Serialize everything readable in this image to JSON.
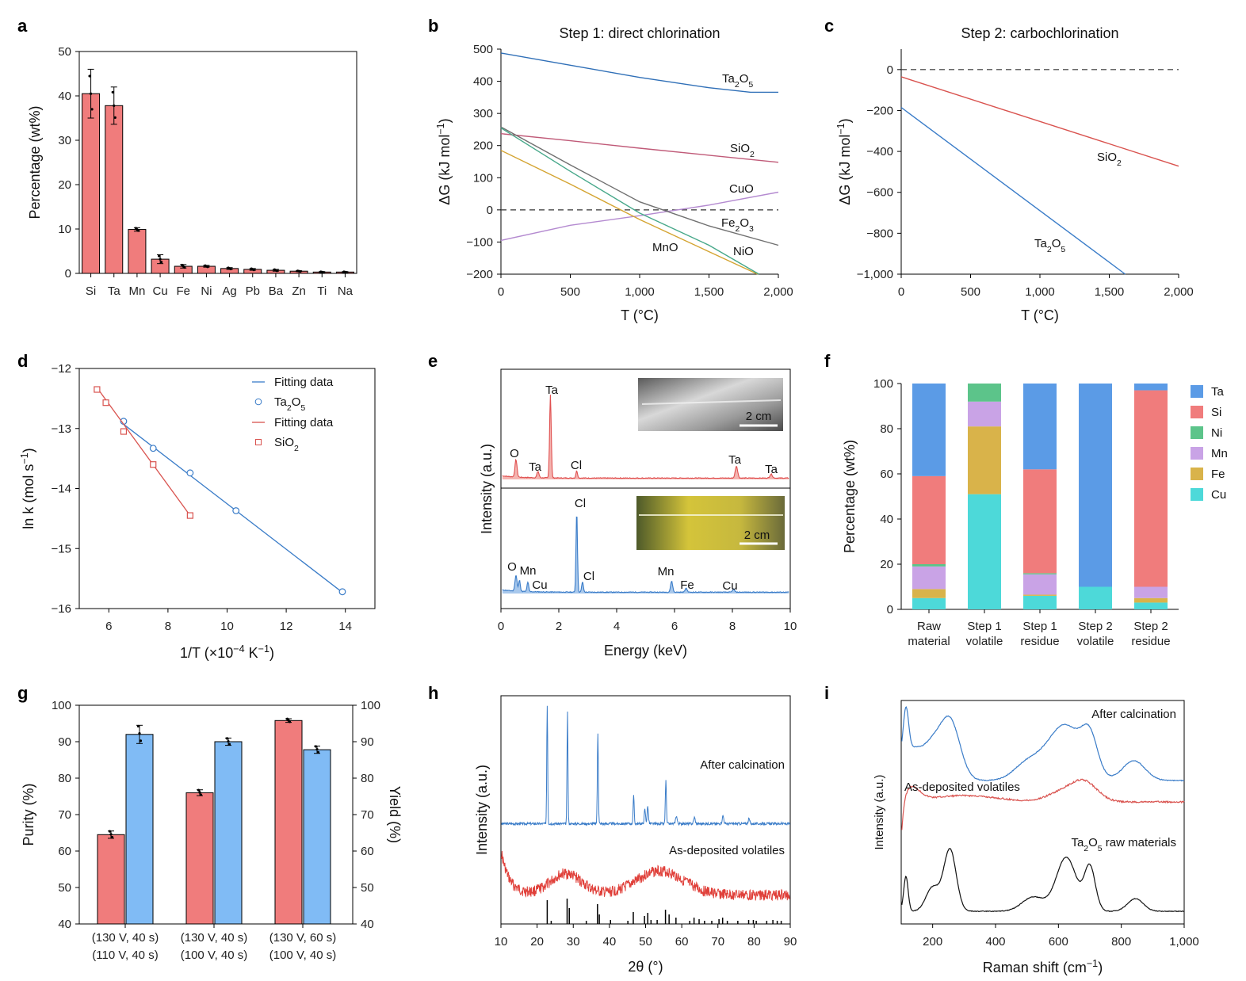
{
  "colors": {
    "red": "#f07c7c",
    "red_line": "#d9534f",
    "blue": "#3a7cc8",
    "light_blue": "#80bbf5",
    "purity": "#e0524a",
    "yield": "#4a90d9"
  },
  "panels": {
    "a": "a",
    "b": "b",
    "c": "c",
    "d": "d",
    "e": "e",
    "f": "f",
    "g": "g",
    "h": "h",
    "i": "i"
  },
  "chart_data": [
    {
      "id": "a",
      "type": "bar",
      "categories": [
        "Si",
        "Ta",
        "Mn",
        "Cu",
        "Fe",
        "Ni",
        "Ag",
        "Pb",
        "Ba",
        "Zn",
        "Ti",
        "Na"
      ],
      "values": [
        40.5,
        37.8,
        9.9,
        3.2,
        1.6,
        1.6,
        1.1,
        0.9,
        0.7,
        0.5,
        0.3,
        0.3
      ],
      "errors": [
        5.5,
        4.2,
        0.4,
        1.0,
        0.4,
        0.2,
        0.2,
        0.2,
        0.2,
        0.1,
        0.1,
        0.1
      ],
      "ylabel": "Percentage (wt%)",
      "ylim": [
        0,
        50
      ],
      "yticks": [
        "0",
        "10",
        "20",
        "30",
        "40",
        "50"
      ]
    },
    {
      "id": "b",
      "type": "line",
      "title": "Step 1: direct chlorination",
      "xlabel": "T (°C)",
      "ylabel": "ΔG (kJ mol−1)",
      "xlim": [
        0,
        2000
      ],
      "ylim": [
        -200,
        500
      ],
      "xticks": [
        "0",
        "500",
        "1,000",
        "1,500",
        "2,000"
      ],
      "yticks": [
        "−200",
        "−100",
        "0",
        "100",
        "200",
        "300",
        "400",
        "500"
      ],
      "series": [
        {
          "name": "Ta2O5",
          "label": "Ta",
          "sub1": "2",
          "mid": "O",
          "sub2": "5",
          "color": "#2f6fb7",
          "x": [
            0,
            500,
            1000,
            1500,
            1800,
            2000
          ],
          "y": [
            488,
            450,
            412,
            380,
            366,
            366
          ]
        },
        {
          "name": "SiO2",
          "label": "SiO",
          "sub1": "2",
          "color": "#c05a78",
          "x": [
            0,
            500,
            1000,
            1500,
            2000
          ],
          "y": [
            237,
            215,
            192,
            170,
            148
          ]
        },
        {
          "name": "CuO",
          "label": "CuO",
          "color": "#b48ad0",
          "x": [
            0,
            500,
            1000,
            1500,
            2000
          ],
          "y": [
            -95,
            -48,
            -18,
            15,
            55
          ]
        },
        {
          "name": "Fe2O3",
          "label": "Fe",
          "sub1": "2",
          "mid": "O",
          "sub2": "3",
          "color": "#707070",
          "x": [
            0,
            500,
            1000,
            1500,
            2000
          ],
          "y": [
            258,
            140,
            25,
            -50,
            -110
          ]
        },
        {
          "name": "MnO",
          "label": "MnO",
          "color": "#d4a431",
          "x": [
            0,
            500,
            1000,
            1500,
            1850
          ],
          "y": [
            185,
            80,
            -30,
            -130,
            -200
          ]
        },
        {
          "name": "NiO",
          "label": "NiO",
          "color": "#47a88a",
          "x": [
            0,
            500,
            1000,
            1500,
            1860
          ],
          "y": [
            255,
            120,
            -10,
            -110,
            -200
          ]
        }
      ]
    },
    {
      "id": "c",
      "type": "line",
      "title": "Step 2: carbochlorination",
      "xlabel": "T (°C)",
      "ylabel": "ΔG (kJ mol−1)",
      "xlim": [
        0,
        2000
      ],
      "ylim": [
        -1000,
        100
      ],
      "xticks": [
        "0",
        "500",
        "1,000",
        "1,500",
        "2,000"
      ],
      "yticks": [
        "−1,000",
        "−800",
        "−600",
        "−400",
        "−200",
        "0"
      ],
      "series": [
        {
          "name": "SiO2",
          "label": "SiO",
          "sub1": "2",
          "color": "#d9534f",
          "x": [
            0,
            2000
          ],
          "y": [
            -35,
            -472
          ]
        },
        {
          "name": "Ta2O5",
          "label": "Ta",
          "sub1": "2",
          "mid": "O",
          "sub2": "5",
          "color": "#3a7cc8",
          "x": [
            0,
            1615
          ],
          "y": [
            -185,
            -1000
          ]
        }
      ]
    },
    {
      "id": "d",
      "type": "scatter",
      "xlabel": "1/T (×10−4 K−1)",
      "ylabel": "ln k (mol s−1)",
      "xlim": [
        5,
        15
      ],
      "ylim": [
        -16,
        -12
      ],
      "xticks": [
        "6",
        "8",
        "10",
        "12",
        "14"
      ],
      "yticks": [
        "−16",
        "−15",
        "−14",
        "−13",
        "−12"
      ],
      "legend": [
        "Fitting data",
        "Ta2O5",
        "Fitting data",
        "SiO2"
      ],
      "series": [
        {
          "name": "Ta2O5",
          "color": "#3a7cc8",
          "marker": "circle",
          "x": [
            6.5,
            7.5,
            8.75,
            10.3,
            13.9
          ],
          "y": [
            -12.88,
            -13.33,
            -13.74,
            -14.37,
            -15.72
          ],
          "fit": [
            [
              6.5,
              -12.93
            ],
            [
              13.9,
              -15.73
            ]
          ]
        },
        {
          "name": "SiO2",
          "color": "#d9534f",
          "marker": "square",
          "x": [
            5.6,
            5.9,
            6.5,
            7.5,
            8.75
          ],
          "y": [
            -12.35,
            -12.57,
            -13.05,
            -13.6,
            -14.45
          ],
          "fit": [
            [
              5.6,
              -12.32
            ],
            [
              8.75,
              -14.45
            ]
          ]
        }
      ]
    },
    {
      "id": "e",
      "type": "line",
      "xlabel": "Energy (keV)",
      "ylabel": "Intensity (a.u.)",
      "xlim": [
        0,
        10
      ],
      "xticks": [
        "0",
        "2",
        "4",
        "6",
        "8",
        "10"
      ],
      "top_peaks": [
        "O",
        "Ta",
        "Ta",
        "Cl",
        "Ta",
        "Ta"
      ],
      "bottom_peaks": [
        "O",
        "Mn",
        "Cu",
        "Cl",
        "Cl",
        "Mn",
        "Fe",
        "Cu"
      ],
      "scalebar": "2 cm",
      "scalebar2": "2 cm"
    },
    {
      "id": "f",
      "type": "bar",
      "stacked": true,
      "categories": [
        [
          "Raw",
          "material"
        ],
        [
          "Step 1",
          "volatile"
        ],
        [
          "Step 1",
          "residue"
        ],
        [
          "Step 2",
          "volatile"
        ],
        [
          "Step 2",
          "residue"
        ]
      ],
      "ylabel": "Percentage (wt%)",
      "ylim": [
        0,
        100
      ],
      "yticks": [
        "0",
        "20",
        "40",
        "60",
        "80",
        "100"
      ],
      "series": [
        {
          "name": "Cu",
          "color": "#4dd9d9",
          "values": [
            5,
            51,
            6,
            10,
            3
          ]
        },
        {
          "name": "Fe",
          "color": "#d9b34a",
          "values": [
            4,
            30,
            0.5,
            0,
            2
          ]
        },
        {
          "name": "Mn",
          "color": "#c9a3e6",
          "values": [
            10,
            11,
            9,
            0,
            5
          ]
        },
        {
          "name": "Ni",
          "color": "#5cc48a",
          "values": [
            1,
            8,
            0.5,
            0,
            0
          ]
        },
        {
          "name": "Si",
          "color": "#f07c7c",
          "values": [
            39,
            0,
            46,
            0,
            87
          ]
        },
        {
          "name": "Ta",
          "color": "#5b9be6",
          "values": [
            41,
            0,
            38,
            90,
            3
          ]
        }
      ],
      "legend_order": [
        "Ta",
        "Si",
        "Ni",
        "Mn",
        "Fe",
        "Cu"
      ]
    },
    {
      "id": "g",
      "type": "bar",
      "categories": [
        [
          "(130 V, 40 s)",
          "(110 V, 40 s)"
        ],
        [
          "(130 V, 40 s)",
          "(100 V, 40 s)"
        ],
        [
          "(130 V, 60 s)",
          "(100 V, 40 s)"
        ]
      ],
      "series": [
        {
          "name": "Purity (%)",
          "color": "#f07c7c",
          "values": [
            64.5,
            76,
            95.8
          ],
          "errors": [
            1.0,
            0.8,
            0.5
          ]
        },
        {
          "name": "Yield (%)",
          "color": "#80bbf5",
          "values": [
            92,
            90,
            87.8
          ],
          "errors": [
            2.5,
            1.0,
            1.0
          ]
        }
      ],
      "ylabel_left": "Purity (%)",
      "ylabel_right": "Yield (%)",
      "ylim": [
        40,
        100
      ],
      "yticks": [
        "40",
        "50",
        "60",
        "70",
        "80",
        "90",
        "100"
      ]
    },
    {
      "id": "h",
      "type": "line",
      "xlabel": "2θ (°)",
      "ylabel": "Intensity (a.u.)",
      "xlim": [
        10,
        90
      ],
      "xticks": [
        "10",
        "20",
        "30",
        "40",
        "50",
        "60",
        "70",
        "80",
        "90"
      ],
      "series": [
        {
          "name": "After calcination",
          "color": "#3a7cc8"
        },
        {
          "name": "As-deposited volatiles",
          "color": "#e0403a"
        }
      ]
    },
    {
      "id": "i",
      "type": "line",
      "xlabel": "Raman shift (cm−1)",
      "ylabel": "Intensity (a.u.)",
      "xlim": [
        100,
        1000
      ],
      "xticks": [
        "200",
        "400",
        "600",
        "800",
        "1,000"
      ],
      "series": [
        {
          "name": "After calcination",
          "color": "#3a7cc8"
        },
        {
          "name": "As-deposited volatiles",
          "color": "#d9534f"
        },
        {
          "name": "Ta2O5 raw materials",
          "label": "Ta",
          "sub1": "2",
          "mid": "O",
          "sub2": "5",
          "tail": " raw materials",
          "color": "#111111"
        }
      ]
    }
  ]
}
